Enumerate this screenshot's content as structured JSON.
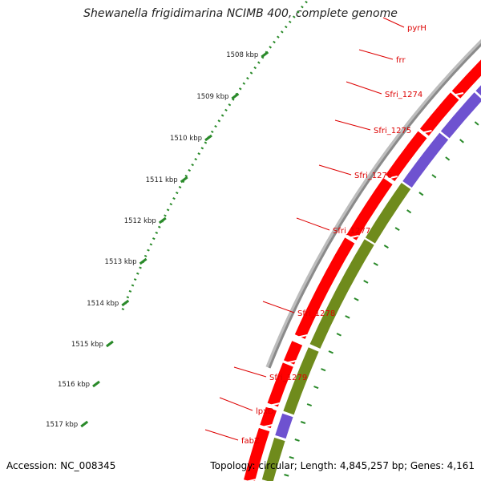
{
  "title": "Shewanella frigidimarina NCIMB 400, complete genome",
  "accession": "Accession: NC_008345",
  "topology": "Topology: circular; Length: 4,845,257 bp; Genes: 4,161",
  "colors": {
    "backbone": "#8a8a8a",
    "tick": "#2a8a2a",
    "forward": "#ff0000",
    "cds_blue": "#6e52d0",
    "cds_olive": "#6f8b1c",
    "cds_pink": "#f08080",
    "cds_cyan": "#2ec8f5",
    "label": "#dd0000"
  },
  "kbp_labels": [
    "1508 kbp",
    "1509 kbp",
    "1510 kbp",
    "1511 kbp",
    "1512 kbp",
    "1513 kbp",
    "1514 kbp",
    "1515 kbp",
    "1516 kbp",
    "1517 kbp"
  ],
  "genes": [
    {
      "name": "pyrH",
      "color": "cds_cyan"
    },
    {
      "name": "frr",
      "color": "cds_pink"
    },
    {
      "name": "Sfri_1274",
      "color": "cds_blue"
    },
    {
      "name": "Sfri_1275",
      "color": "cds_blue"
    },
    {
      "name": "Sfri_1276",
      "color": "cds_blue"
    },
    {
      "name": "Sfri_1277",
      "color": "cds_olive"
    },
    {
      "name": "Sfri_1278",
      "color": "cds_olive"
    },
    {
      "name": "Sfri_1279",
      "color": "cds_olive"
    },
    {
      "name": "lpxD",
      "color": "cds_olive"
    },
    {
      "name": "fabZ",
      "color": "cds_blue"
    }
  ]
}
